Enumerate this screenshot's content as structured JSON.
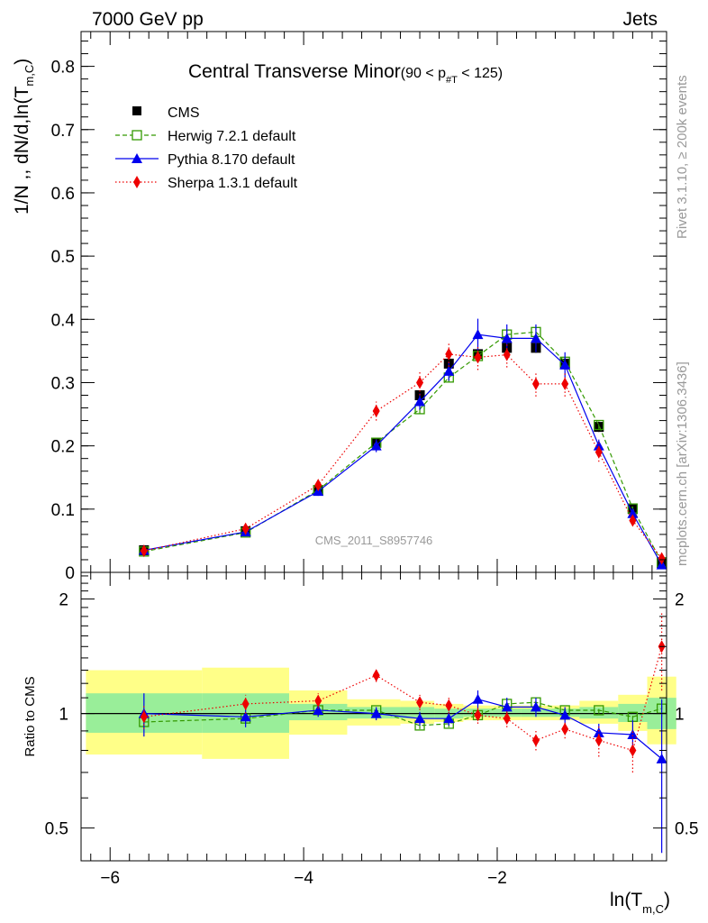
{
  "header": {
    "left_label": "7000 GeV pp",
    "right_label": "Jets"
  },
  "side_labels": {
    "rivet": "Rivet 3.1.10, ≥ 200k events",
    "mcplots": "mcplots.cern.ch [arXiv:1306.3436]"
  },
  "chart_data": [
    {
      "type": "line",
      "title": "Central Transverse Minor",
      "title_range_prefix": "(90 < p",
      "title_range_sub": "#T",
      "title_range_suffix": " < 125)",
      "ylabel": "1/N ,, dN/d,ln(T",
      "ylabel_sub": "m,C",
      "ylabel_close": ")",
      "watermark": "CMS_2011_S8957746",
      "xlim": [
        -6.3,
        -0.25
      ],
      "ylim": [
        0,
        0.855
      ],
      "yticks": [
        0,
        0.1,
        0.2,
        0.3,
        0.4,
        0.5,
        0.6,
        0.7,
        0.8
      ],
      "ytick_labels": [
        "0",
        "0.1",
        "0.2",
        "0.3",
        "0.4",
        "0.5",
        "0.6",
        "0.7",
        "0.8"
      ],
      "legend_position": "top-left",
      "x": [
        -5.65,
        -4.6,
        -3.85,
        -3.25,
        -2.8,
        -2.5,
        -2.2,
        -1.9,
        -1.6,
        -1.3,
        -0.95,
        -0.6,
        -0.3
      ],
      "series": [
        {
          "name": "CMS",
          "color": "#000000",
          "marker": "square-filled",
          "line": "none",
          "values": [
            0.035,
            0.065,
            0.13,
            0.205,
            0.28,
            0.33,
            0.345,
            0.355,
            0.355,
            0.33,
            0.23,
            0.1,
            0.015
          ],
          "errors": [
            0.003,
            0.003,
            0.005,
            0.008,
            0.008,
            0.008,
            0.008,
            0.008,
            0.008,
            0.008,
            0.008,
            0.005,
            0.003
          ]
        },
        {
          "name": "Herwig 7.2.1 default",
          "color": "#339900",
          "marker": "square-open",
          "line": "dashed",
          "values": [
            0.033,
            0.063,
            0.13,
            0.205,
            0.258,
            0.308,
            0.342,
            0.376,
            0.38,
            0.333,
            0.233,
            0.101,
            0.016
          ],
          "errors": [
            0.002,
            0.003,
            0.004,
            0.006,
            0.007,
            0.008,
            0.008,
            0.008,
            0.008,
            0.007,
            0.006,
            0.004,
            0.002
          ]
        },
        {
          "name": "Pythia 8.170 default",
          "color": "#0000ee",
          "marker": "triangle-filled",
          "line": "solid",
          "values": [
            0.035,
            0.064,
            0.128,
            0.2,
            0.27,
            0.318,
            0.376,
            0.37,
            0.37,
            0.328,
            0.2,
            0.093,
            0.012
          ],
          "errors": [
            0.004,
            0.004,
            0.007,
            0.01,
            0.013,
            0.015,
            0.025,
            0.022,
            0.022,
            0.02,
            0.01,
            0.008,
            0.004
          ]
        },
        {
          "name": "Sherpa 1.3.1 default",
          "color": "#ee0000",
          "marker": "diamond-filled",
          "line": "dotted",
          "values": [
            0.034,
            0.069,
            0.138,
            0.255,
            0.3,
            0.345,
            0.34,
            0.344,
            0.298,
            0.298,
            0.19,
            0.082,
            0.022
          ],
          "errors": [
            0.003,
            0.005,
            0.008,
            0.015,
            0.02,
            0.02,
            0.02,
            0.02,
            0.02,
            0.02,
            0.015,
            0.008,
            0.005
          ]
        }
      ]
    },
    {
      "type": "line",
      "ylabel": "Ratio to CMS",
      "xlabel": "ln(T",
      "xlabel_sub": "m,C",
      "xlabel_close": ")",
      "ylim": [
        0.41,
        2.35
      ],
      "y_scale": "log",
      "xlim": [
        -6.3,
        -0.25
      ],
      "xticks": [
        -6,
        -4,
        -2
      ],
      "xtick_labels": [
        "−6",
        "−4",
        "−2"
      ],
      "yticks": [
        0.5,
        1,
        2
      ],
      "ytick_labels": [
        "0.5",
        "1",
        "2"
      ],
      "reference_line": 1,
      "uncertainty_bands": {
        "inner_color": "#99ee99",
        "outer_color": "#ffff88",
        "bins": [
          {
            "x0": -6.25,
            "x1": -5.05,
            "inner": [
              0.89,
              1.13
            ],
            "outer": [
              0.78,
              1.3
            ]
          },
          {
            "x0": -5.05,
            "x1": -4.15,
            "inner": [
              0.89,
              1.13
            ],
            "outer": [
              0.76,
              1.32
            ]
          },
          {
            "x0": -4.15,
            "x1": -3.55,
            "inner": [
              0.96,
              1.06
            ],
            "outer": [
              0.88,
              1.15
            ]
          },
          {
            "x0": -3.55,
            "x1": -3.0,
            "inner": [
              0.97,
              1.04
            ],
            "outer": [
              0.93,
              1.09
            ]
          },
          {
            "x0": -3.0,
            "x1": -2.65,
            "inner": [
              0.97,
              1.04
            ],
            "outer": [
              0.94,
              1.08
            ]
          },
          {
            "x0": -2.65,
            "x1": -2.35,
            "inner": [
              0.97,
              1.03
            ],
            "outer": [
              0.95,
              1.06
            ]
          },
          {
            "x0": -2.35,
            "x1": -2.05,
            "inner": [
              0.98,
              1.03
            ],
            "outer": [
              0.96,
              1.05
            ]
          },
          {
            "x0": -2.05,
            "x1": -1.75,
            "inner": [
              0.98,
              1.03
            ],
            "outer": [
              0.96,
              1.05
            ]
          },
          {
            "x0": -1.75,
            "x1": -1.45,
            "inner": [
              0.98,
              1.03
            ],
            "outer": [
              0.96,
              1.05
            ]
          },
          {
            "x0": -1.45,
            "x1": -1.15,
            "inner": [
              0.98,
              1.03
            ],
            "outer": [
              0.96,
              1.05
            ]
          },
          {
            "x0": -1.15,
            "x1": -0.75,
            "inner": [
              0.97,
              1.04
            ],
            "outer": [
              0.94,
              1.08
            ]
          },
          {
            "x0": -0.75,
            "x1": -0.45,
            "inner": [
              0.95,
              1.06
            ],
            "outer": [
              0.9,
              1.12
            ]
          },
          {
            "x0": -0.45,
            "x1": -0.15,
            "inner": [
              0.91,
              1.1
            ],
            "outer": [
              0.83,
              1.25
            ]
          }
        ]
      },
      "series": [
        {
          "name": "Herwig 7.2.1 default",
          "color": "#339900",
          "marker": "square-open",
          "line": "dashed",
          "values": [
            0.95,
            0.97,
            1.02,
            1.02,
            0.93,
            0.94,
            0.99,
            1.06,
            1.07,
            1.02,
            1.02,
            0.98,
            1.03
          ],
          "errors": [
            0.02,
            0.03,
            0.02,
            0.02,
            0.02,
            0.02,
            0.02,
            0.02,
            0.02,
            0.02,
            0.02,
            0.02,
            0.05
          ]
        },
        {
          "name": "Pythia 8.170 default",
          "color": "#0000ee",
          "marker": "triangle-filled",
          "line": "solid",
          "values": [
            1.0,
            0.98,
            1.02,
            1.0,
            0.97,
            0.97,
            1.09,
            1.04,
            1.04,
            0.99,
            0.89,
            0.88,
            0.76
          ],
          "errors": [
            0.13,
            0.06,
            0.04,
            0.04,
            0.04,
            0.04,
            0.06,
            0.06,
            0.06,
            0.05,
            0.05,
            0.08,
            0.33
          ]
        },
        {
          "name": "Sherpa 1.3.1 default",
          "color": "#ee0000",
          "marker": "diamond-filled",
          "line": "dotted",
          "values": [
            0.98,
            1.06,
            1.08,
            1.26,
            1.07,
            1.05,
            0.99,
            0.97,
            0.85,
            0.91,
            0.85,
            0.8,
            1.5
          ],
          "errors": [
            0.07,
            0.06,
            0.05,
            0.05,
            0.05,
            0.05,
            0.05,
            0.05,
            0.05,
            0.05,
            0.08,
            0.1,
            0.35
          ]
        }
      ]
    }
  ]
}
